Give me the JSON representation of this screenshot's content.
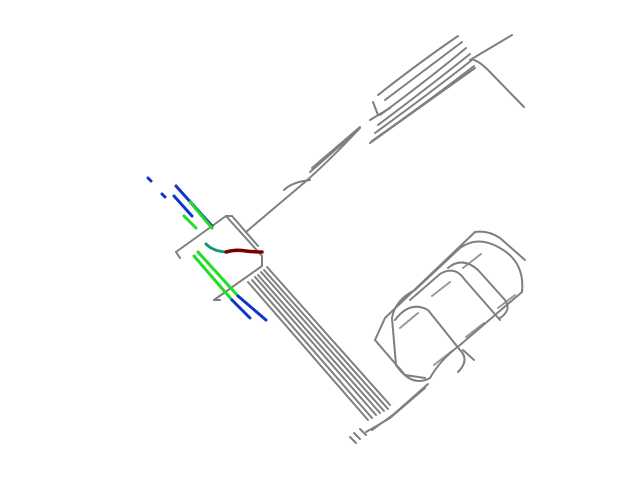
{
  "colors": {
    "background": "#ffffff",
    "road": "#7f7f7f",
    "lane_green": "#22dd22",
    "lane_blue": "#1133cc",
    "lane_teal": "#119977",
    "ego_path": "#7a0000"
  },
  "layers": [
    {
      "name": "road-network"
    },
    {
      "name": "lane-tracks"
    },
    {
      "name": "ego-trajectory"
    }
  ]
}
